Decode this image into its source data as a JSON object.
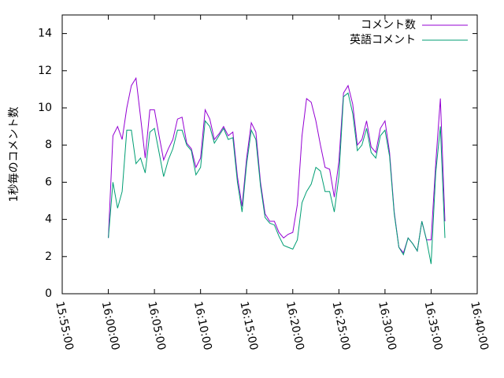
{
  "chart_data": {
    "type": "line",
    "ylabel": "1秒毎のコメント数",
    "x": [
      "16:00:00",
      "16:00:30",
      "16:01:00",
      "16:01:30",
      "16:02:00",
      "16:02:30",
      "16:03:00",
      "16:03:30",
      "16:04:00",
      "16:04:30",
      "16:05:00",
      "16:05:30",
      "16:06:00",
      "16:06:30",
      "16:07:00",
      "16:07:30",
      "16:08:00",
      "16:08:30",
      "16:09:00",
      "16:09:30",
      "16:10:00",
      "16:10:30",
      "16:11:00",
      "16:11:30",
      "16:12:00",
      "16:12:30",
      "16:13:00",
      "16:13:30",
      "16:14:00",
      "16:14:30",
      "16:15:00",
      "16:15:30",
      "16:16:00",
      "16:16:30",
      "16:17:00",
      "16:17:30",
      "16:18:00",
      "16:18:30",
      "16:19:00",
      "16:19:30",
      "16:20:00",
      "16:20:30",
      "16:21:00",
      "16:21:30",
      "16:22:00",
      "16:22:30",
      "16:23:00",
      "16:23:30",
      "16:24:00",
      "16:24:30",
      "16:25:00",
      "16:25:30",
      "16:26:00",
      "16:26:30",
      "16:27:00",
      "16:27:30",
      "16:28:00",
      "16:28:30",
      "16:29:00",
      "16:29:30",
      "16:30:00",
      "16:30:30",
      "16:31:00",
      "16:31:30",
      "16:32:00",
      "16:32:30",
      "16:33:00",
      "16:33:30",
      "16:34:00",
      "16:34:30",
      "16:35:00",
      "16:35:30",
      "16:36:00",
      "16:36:30"
    ],
    "series": [
      {
        "name": "コメント数",
        "color": "#9400d3",
        "values": [
          3.0,
          8.5,
          9.0,
          8.3,
          10.0,
          11.2,
          11.6,
          9.5,
          7.3,
          9.9,
          9.9,
          8.5,
          7.2,
          7.8,
          8.3,
          9.4,
          9.5,
          8.1,
          7.8,
          6.8,
          7.3,
          9.9,
          9.4,
          8.3,
          8.6,
          9.0,
          8.5,
          8.7,
          6.3,
          4.7,
          7.3,
          9.2,
          8.7,
          6.0,
          4.3,
          3.9,
          3.9,
          3.3,
          3.0,
          3.2,
          3.3,
          4.8,
          8.5,
          10.5,
          10.3,
          9.3,
          8.0,
          6.8,
          6.7,
          5.2,
          7.1,
          10.8,
          11.2,
          10.2,
          8.0,
          8.3,
          9.3,
          7.9,
          7.6,
          8.9,
          9.3,
          7.6,
          4.4,
          2.5,
          2.2,
          3.0,
          2.7,
          2.3,
          3.9,
          2.9,
          2.9,
          7.0,
          10.5,
          3.9
        ]
      },
      {
        "name": "英語コメント",
        "color": "#009e73",
        "values": [
          3.0,
          6.0,
          4.6,
          5.5,
          8.8,
          8.8,
          7.0,
          7.3,
          6.5,
          8.7,
          8.9,
          7.6,
          6.3,
          7.2,
          7.8,
          8.8,
          8.8,
          8.0,
          7.7,
          6.4,
          6.8,
          9.3,
          9.0,
          8.1,
          8.5,
          8.9,
          8.3,
          8.4,
          6.0,
          4.4,
          7.0,
          8.8,
          8.3,
          5.8,
          4.1,
          3.8,
          3.7,
          3.1,
          2.6,
          2.5,
          2.4,
          2.9,
          4.9,
          5.5,
          5.9,
          6.8,
          6.6,
          5.5,
          5.5,
          4.4,
          6.3,
          10.6,
          10.8,
          9.7,
          7.7,
          8.0,
          8.9,
          7.6,
          7.3,
          8.5,
          8.8,
          7.4,
          4.3,
          2.5,
          2.1,
          3.0,
          2.7,
          2.3,
          3.9,
          2.9,
          1.6,
          6.5,
          9.0,
          3.0
        ]
      }
    ],
    "xlim": [
      "15:55:00",
      "16:40:00"
    ],
    "xticks": [
      "15:55:00",
      "16:00:00",
      "16:05:00",
      "16:10:00",
      "16:15:00",
      "16:20:00",
      "16:25:00",
      "16:30:00",
      "16:35:00",
      "16:40:00"
    ],
    "ylim": [
      0,
      15
    ],
    "yticks": [
      0,
      2,
      4,
      6,
      8,
      10,
      12,
      14
    ],
    "legend": "top-right"
  }
}
